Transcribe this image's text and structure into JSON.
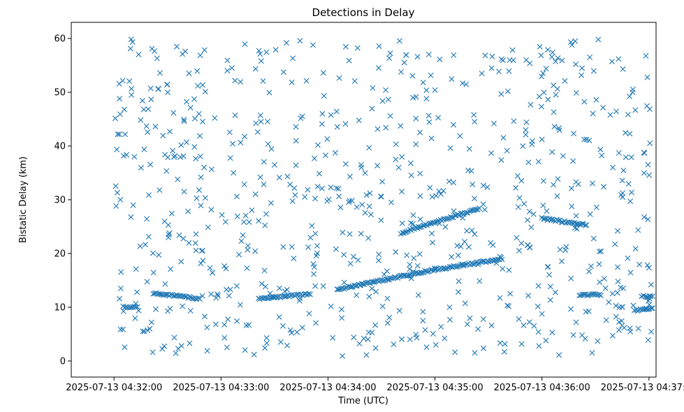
{
  "chart_data": {
    "type": "scatter",
    "title": "Detections in Delay",
    "xlabel": "Time (UTC)",
    "ylabel": "Bistatic Delay (km)",
    "marker": "x",
    "marker_color": "#1f77b4",
    "grid": false,
    "legend": "none",
    "x_start": "2025-07-13 04:32:00",
    "xlim_seconds": [
      -24,
      304
    ],
    "ylim": [
      -3,
      63
    ],
    "xticks": [
      {
        "seconds": 0,
        "label": "2025-07-13 04:32:00"
      },
      {
        "seconds": 60,
        "label": "2025-07-13 04:33:00"
      },
      {
        "seconds": 120,
        "label": "2025-07-13 04:34:00"
      },
      {
        "seconds": 180,
        "label": "2025-07-13 04:35:00"
      },
      {
        "seconds": 240,
        "label": "2025-07-13 04:36:00"
      },
      {
        "seconds": 300,
        "label": "2025-07-13 04:37:00"
      }
    ],
    "yticks": [
      0,
      10,
      20,
      30,
      40,
      50,
      60
    ],
    "tracks": [
      {
        "t_start": 22,
        "t_end": 48,
        "delay_start": 12.6,
        "delay_end": 11.6
      },
      {
        "t_start": 81,
        "t_end": 110,
        "delay_start": 11.5,
        "delay_end": 12.5
      },
      {
        "t_start": 125,
        "t_end": 180,
        "delay_start": 13.3,
        "delay_end": 17.0
      },
      {
        "t_start": 180,
        "t_end": 216,
        "delay_start": 17.0,
        "delay_end": 18.9
      },
      {
        "t_start": 161,
        "t_end": 205,
        "delay_start": 23.8,
        "delay_end": 28.4
      },
      {
        "t_start": 240,
        "t_end": 265,
        "delay_start": 26.5,
        "delay_end": 25.3
      },
      {
        "t_start": 5,
        "t_end": 13,
        "delay_start": 10.0,
        "delay_end": 10.0
      },
      {
        "t_start": 261,
        "t_end": 273,
        "delay_start": 12.3,
        "delay_end": 12.3
      },
      {
        "t_start": 292,
        "t_end": 302,
        "delay_start": 9.3,
        "delay_end": 9.8
      },
      {
        "t_start": 296,
        "t_end": 302,
        "delay_start": 12.0,
        "delay_end": 12.0
      }
    ],
    "clutter_points": 760
  }
}
